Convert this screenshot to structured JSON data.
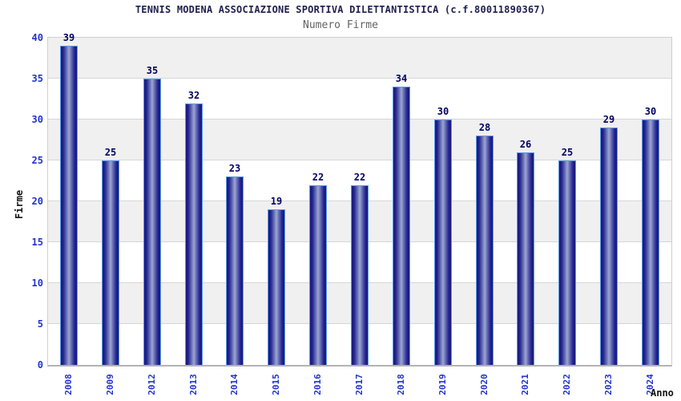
{
  "header": {
    "title": "TENNIS MODENA ASSOCIAZIONE SPORTIVA DILETTANTISTICA (c.f.80011890367)",
    "subtitle": "Numero Firme"
  },
  "chart_data": {
    "type": "bar",
    "title": "TENNIS MODENA ASSOCIAZIONE SPORTIVA DILETTANTISTICA (c.f.80011890367)",
    "subtitle": "Numero Firme",
    "categories": [
      "2008",
      "2009",
      "2012",
      "2013",
      "2014",
      "2015",
      "2016",
      "2017",
      "2018",
      "2019",
      "2020",
      "2021",
      "2022",
      "2023",
      "2024"
    ],
    "values": [
      39,
      25,
      35,
      32,
      23,
      19,
      22,
      22,
      34,
      30,
      28,
      26,
      25,
      29,
      30
    ],
    "xlabel": "Anno",
    "ylabel": "Firme",
    "ylim": [
      0,
      40
    ],
    "yticks": [
      0,
      5,
      10,
      15,
      20,
      25,
      30,
      35,
      40
    ],
    "grid": true,
    "legend": "none",
    "band_colors": [
      "#f0f0f0",
      "#ffffff"
    ],
    "colors": {
      "title": "#202050",
      "subtitle": "#636363",
      "axis_tick_labels": "#2233cc",
      "bar_value_labels": "#000066",
      "bar_edge": "#181880",
      "bar_center": "#9ea6d2",
      "bar_border": "#5c9ce6",
      "gridline": "#d6d6d6"
    }
  }
}
